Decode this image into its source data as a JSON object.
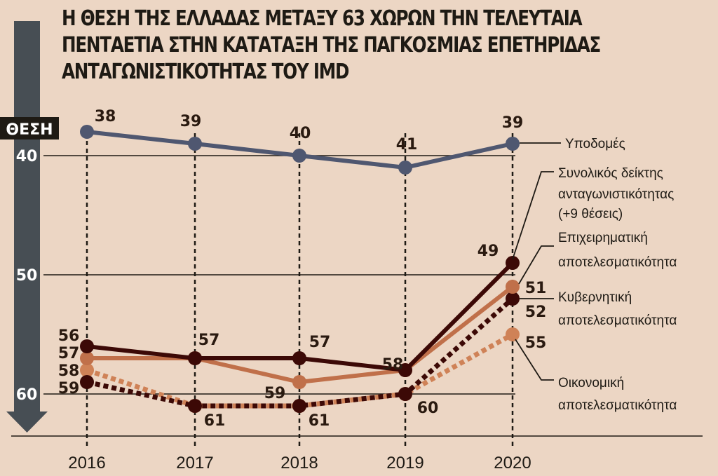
{
  "title_lines": [
    "Η ΘΕΣΗ ΤΗΣ ΕΛΛΑΔΑΣ ΜΕΤΑΞΥ 63 ΧΩΡΩΝ ΤΗΝ ΤΕΛΕΥΤΑΙΑ",
    "ΠΕΝΤΑΕΤΙΑ ΣΤΗΝ ΚΑΤΑΤΑΞΗ ΤΗΣ ΠΑΓΚΟΣΜΙΑΣ ΕΠΕΤΗΡΙΔΑΣ",
    "ΑΝΤΑΓΩΝΙΣΤΙΚΟΤΗΤΑΣ ΤΟΥ IMD"
  ],
  "chart_data": {
    "type": "line",
    "ylabel": "ΘΕΣΗ",
    "y_inverted": true,
    "ylim": [
      36.5,
      63.5
    ],
    "yticks": [
      "40",
      "50",
      "60"
    ],
    "grid": "horizontal at 40, 50, 60",
    "categories": [
      "2016",
      "2017",
      "2018",
      "2019",
      "2020"
    ],
    "legend_placement": "right",
    "series": [
      {
        "name": "Υποδομές",
        "values": [
          38,
          39,
          40,
          41,
          39
        ],
        "color": "#4f5770",
        "style": "solid"
      },
      {
        "name": "Συνολικός δείκτης ανταγωνιστικότητας (+9 θέσεις)",
        "name_lines": [
          "Συνολικός δείκτης",
          "ανταγωνιστικότητας",
          "(+9 θέσεις)"
        ],
        "values": [
          56,
          57,
          57,
          58,
          49
        ],
        "color": "#3c0906",
        "style": "solid"
      },
      {
        "name": "Επιχειρηματική αποτελεσματικότητα",
        "name_lines": [
          "Επιχειρηματική",
          "αποτελεσματικότητα"
        ],
        "values": [
          57,
          57,
          59,
          58,
          51
        ],
        "color": "#c0704a",
        "style": "solid"
      },
      {
        "name": "Κυβερνητική αποτελεσματικότητα",
        "name_lines": [
          "Κυβερνητική",
          "αποτελεσματικότητα"
        ],
        "values": [
          59,
          61,
          61,
          60,
          52
        ],
        "color": "#3c0906",
        "style": "dotted"
      },
      {
        "name": "Οικονομική αποτελεσματικότητα",
        "name_lines": [
          "Οικονομική",
          "αποτελεσματικότητα"
        ],
        "values": [
          58,
          61,
          61,
          60,
          55
        ],
        "color": "#cf8257",
        "style": "dotted"
      }
    ],
    "data_labels": {
      "2016": [
        "38",
        "56",
        "57",
        "58",
        "59"
      ],
      "2017": [
        "39",
        "57",
        "61"
      ],
      "2018": [
        "40",
        "57",
        "59",
        "61"
      ],
      "2019": [
        "41",
        "58",
        "60"
      ],
      "2020": [
        "39",
        "49",
        "51",
        "52",
        "55"
      ]
    }
  },
  "colors": {
    "background": "#ecd6c4",
    "axis_arrow": "#474e54",
    "axis_label_bg": "#1e1a14"
  }
}
